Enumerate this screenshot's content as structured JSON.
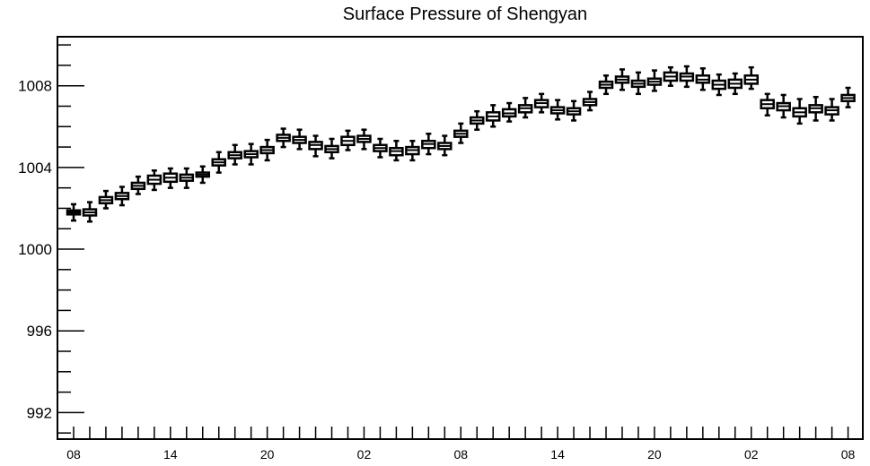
{
  "chart_data": {
    "type": "boxplot",
    "title": "Surface Pressure of Shengyan",
    "xlabel": "",
    "ylabel": "",
    "ylim": [
      990.7,
      1010.4
    ],
    "yticks": [
      992,
      996,
      1000,
      1004,
      1008
    ],
    "x_tick_labels": [
      "08",
      "14",
      "20",
      "02",
      "08",
      "14",
      "20",
      "02",
      "08"
    ],
    "x_tick_label_steps": [
      0,
      6,
      12,
      18,
      24,
      30,
      36,
      42,
      48
    ],
    "x_step_hours": 1,
    "n_steps": 49,
    "grid": false,
    "legend": "none",
    "colors": {
      "stroke": "#000000",
      "box_fill": "#ffffff",
      "background": "#ffffff"
    },
    "series": [
      {
        "median": [
          1001.8,
          1001.8,
          1002.4,
          1002.6,
          1003.1,
          1003.4,
          1003.5,
          1003.5,
          1003.65,
          1004.25,
          1004.6,
          1004.65,
          1004.85,
          1005.45,
          1005.35,
          1005.1,
          1004.9,
          1005.3,
          1005.4,
          1004.95,
          1004.8,
          1004.85,
          1005.15,
          1005.05,
          1005.65,
          1006.3,
          1006.5,
          1006.65,
          1006.9,
          1007.15,
          1006.8,
          1006.75,
          1007.2,
          1008.05,
          1008.3,
          1008.1,
          1008.2,
          1008.45,
          1008.45,
          1008.3,
          1008.05,
          1008.1,
          1008.3,
          1007.1,
          1007.0,
          1006.7,
          1006.9,
          1006.8,
          1007.4
        ],
        "q1": [
          1001.7,
          1001.65,
          1002.25,
          1002.45,
          1002.95,
          1003.2,
          1003.3,
          1003.35,
          1003.55,
          1004.1,
          1004.45,
          1004.5,
          1004.7,
          1005.3,
          1005.2,
          1004.9,
          1004.75,
          1005.1,
          1005.25,
          1004.8,
          1004.6,
          1004.65,
          1004.95,
          1004.9,
          1005.5,
          1006.15,
          1006.3,
          1006.5,
          1006.7,
          1006.95,
          1006.65,
          1006.6,
          1007.05,
          1007.9,
          1008.15,
          1007.95,
          1008.05,
          1008.25,
          1008.25,
          1008.15,
          1007.85,
          1007.9,
          1008.1,
          1006.9,
          1006.8,
          1006.5,
          1006.7,
          1006.6,
          1007.25
        ],
        "q3": [
          1001.9,
          1001.95,
          1002.55,
          1002.75,
          1003.25,
          1003.6,
          1003.7,
          1003.65,
          1003.75,
          1004.4,
          1004.75,
          1004.8,
          1005.0,
          1005.6,
          1005.5,
          1005.25,
          1005.05,
          1005.5,
          1005.55,
          1005.1,
          1004.95,
          1005.0,
          1005.3,
          1005.2,
          1005.8,
          1006.45,
          1006.7,
          1006.85,
          1007.05,
          1007.3,
          1006.95,
          1006.9,
          1007.35,
          1008.2,
          1008.45,
          1008.25,
          1008.35,
          1008.65,
          1008.6,
          1008.5,
          1008.25,
          1008.3,
          1008.5,
          1007.3,
          1007.15,
          1006.9,
          1007.05,
          1006.95,
          1007.55
        ],
        "low": [
          1001.4,
          1001.35,
          1002.0,
          1002.15,
          1002.7,
          1002.9,
          1003.0,
          1003.0,
          1003.25,
          1003.75,
          1004.15,
          1004.15,
          1004.35,
          1005.0,
          1004.9,
          1004.55,
          1004.45,
          1004.85,
          1004.9,
          1004.5,
          1004.35,
          1004.35,
          1004.65,
          1004.6,
          1005.2,
          1005.85,
          1006.0,
          1006.25,
          1006.45,
          1006.7,
          1006.35,
          1006.3,
          1006.8,
          1007.6,
          1007.8,
          1007.6,
          1007.75,
          1008.0,
          1007.95,
          1007.8,
          1007.55,
          1007.6,
          1007.85,
          1006.55,
          1006.45,
          1006.15,
          1006.3,
          1006.3,
          1006.95
        ],
        "high": [
          1002.2,
          1002.3,
          1002.85,
          1003.05,
          1003.55,
          1003.85,
          1003.95,
          1003.95,
          1004.05,
          1004.75,
          1005.1,
          1005.15,
          1005.35,
          1005.9,
          1005.85,
          1005.55,
          1005.4,
          1005.8,
          1005.85,
          1005.4,
          1005.3,
          1005.3,
          1005.65,
          1005.55,
          1006.15,
          1006.75,
          1007.05,
          1007.15,
          1007.4,
          1007.6,
          1007.3,
          1007.25,
          1007.7,
          1008.5,
          1008.8,
          1008.65,
          1008.75,
          1008.9,
          1008.95,
          1008.85,
          1008.55,
          1008.6,
          1008.9,
          1007.6,
          1007.55,
          1007.35,
          1007.45,
          1007.35,
          1007.9
        ]
      }
    ]
  }
}
